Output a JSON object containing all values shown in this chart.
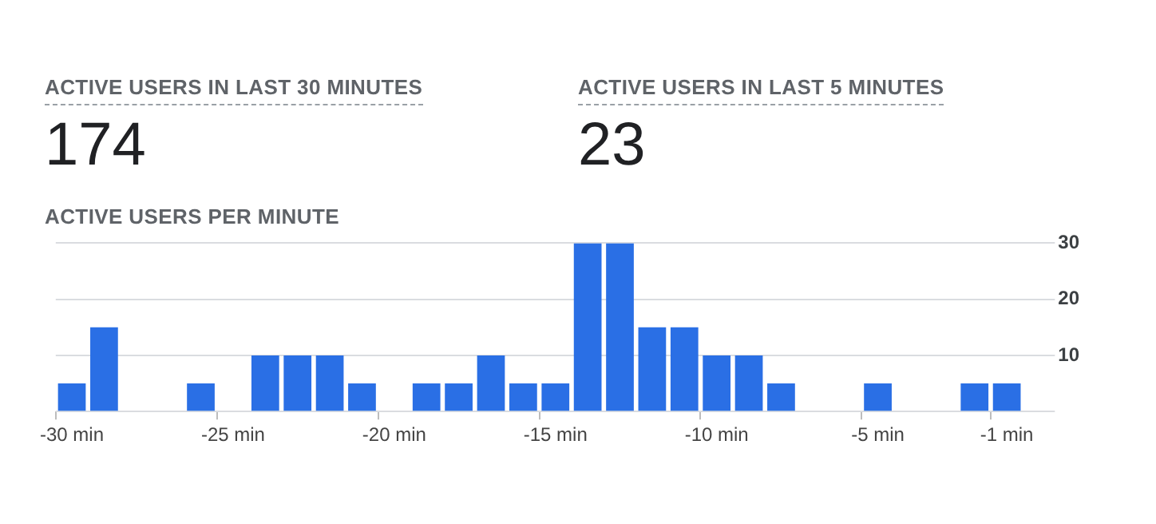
{
  "chart_data": [
    {
      "type": "other",
      "title": "ACTIVE USERS IN LAST 30 MINUTES",
      "annotations": [
        "174"
      ]
    },
    {
      "type": "other",
      "title": "ACTIVE USERS IN LAST 5 MINUTES",
      "annotations": [
        "23"
      ]
    },
    {
      "type": "bar",
      "title": "ACTIVE USERS PER MINUTE",
      "categories": [
        "-30 min",
        null,
        null,
        null,
        null,
        "-25 min",
        null,
        null,
        null,
        null,
        "-20 min",
        null,
        null,
        null,
        null,
        "-15 min",
        null,
        null,
        null,
        null,
        "-10 min",
        null,
        null,
        null,
        null,
        "-5 min",
        null,
        null,
        null,
        "-1 min"
      ],
      "values": [
        5,
        15,
        0,
        0,
        5,
        0,
        10,
        10,
        10,
        5,
        0,
        5,
        5,
        10,
        5,
        5,
        30,
        30,
        15,
        15,
        10,
        10,
        5,
        0,
        0,
        5,
        0,
        0,
        5,
        5
      ],
      "color": "#2a6fe5",
      "ylim": [
        0,
        30
      ],
      "yticks": [
        {
          "value": 0,
          "label": null
        },
        10,
        20,
        30
      ],
      "grid": "y",
      "legend": false
    }
  ]
}
